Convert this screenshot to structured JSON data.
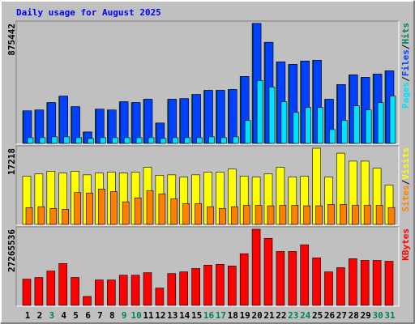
{
  "title": "Daily usage for August 2025",
  "legend_separator": "/",
  "chart_data": [
    {
      "type": "bar",
      "ylim": [
        0,
        875442
      ],
      "yticks": [
        875442
      ],
      "series": [
        {
          "name": "Hits",
          "color": "#00805c",
          "values": [
            238000,
            244000,
            298000,
            345000,
            268000,
            83000,
            250000,
            244000,
            304000,
            298000,
            322000,
            149000,
            322000,
            327000,
            357000,
            387000,
            387000,
            393000,
            488000,
            875442,
            738000,
            595000,
            577000,
            601000,
            607000,
            322000,
            429000,
            500000,
            482000,
            506000,
            530000
          ]
        },
        {
          "name": "Files",
          "color": "#0040ff",
          "values": [
            238000,
            244000,
            298000,
            345000,
            268000,
            83000,
            250000,
            244000,
            304000,
            298000,
            322000,
            149000,
            322000,
            327000,
            357000,
            387000,
            387000,
            393000,
            488000,
            875442,
            738000,
            595000,
            577000,
            601000,
            607000,
            322000,
            429000,
            500000,
            482000,
            506000,
            530000
          ]
        },
        {
          "name": "Pages",
          "color": "#00e0ff",
          "values": [
            42000,
            42000,
            48000,
            48000,
            42000,
            36000,
            42000,
            42000,
            42000,
            42000,
            42000,
            36000,
            42000,
            42000,
            42000,
            48000,
            42000,
            48000,
            167000,
            459000,
            411000,
            304000,
            226000,
            262000,
            262000,
            101000,
            167000,
            274000,
            244000,
            298000,
            345000
          ]
        }
      ]
    },
    {
      "type": "bar",
      "ylim": [
        0,
        17218
      ],
      "yticks": [
        17218
      ],
      "series": [
        {
          "name": "Visits",
          "color": "#ffff00",
          "values": [
            10900,
            11400,
            12000,
            11600,
            12000,
            11200,
            11600,
            11800,
            11600,
            11800,
            12900,
            11100,
            11200,
            10700,
            11200,
            11800,
            11800,
            12500,
            10900,
            10700,
            11400,
            12900,
            10700,
            10900,
            17218,
            10700,
            16100,
            14300,
            14300,
            12700,
            8900
          ]
        },
        {
          "name": "Sites",
          "color": "#ff8000",
          "values": [
            3800,
            4000,
            3600,
            3400,
            7200,
            7100,
            8000,
            7400,
            5100,
            6000,
            7600,
            6900,
            5800,
            4700,
            4700,
            4000,
            3600,
            4000,
            4300,
            4300,
            4200,
            4300,
            4300,
            4200,
            4200,
            4500,
            4500,
            4300,
            4300,
            4300,
            3800
          ]
        }
      ]
    },
    {
      "type": "bar",
      "ylim": [
        0,
        27265536
      ],
      "yticks": [
        27265536
      ],
      "categories": [
        "1",
        "2",
        "3",
        "4",
        "5",
        "6",
        "7",
        "8",
        "9",
        "10",
        "11",
        "12",
        "13",
        "14",
        "15",
        "16",
        "17",
        "18",
        "19",
        "20",
        "21",
        "22",
        "23",
        "24",
        "25",
        "26",
        "27",
        "28",
        "29",
        "30",
        "31"
      ],
      "category_colors": [
        "#000000",
        "#000000",
        "#00805c",
        "#000000",
        "#000000",
        "#000000",
        "#000000",
        "#000000",
        "#00805c",
        "#00805c",
        "#000000",
        "#000000",
        "#000000",
        "#000000",
        "#000000",
        "#00805c",
        "#00805c",
        "#000000",
        "#000000",
        "#000000",
        "#000000",
        "#000000",
        "#00805c",
        "#00805c",
        "#000000",
        "#000000",
        "#000000",
        "#000000",
        "#000000",
        "#00805c",
        "#00805c"
      ],
      "series": [
        {
          "name": "KBytes",
          "color": "#ff0000",
          "values": [
            9400000,
            10000000,
            12300000,
            15000000,
            10000000,
            3200000,
            9100000,
            9100000,
            10800000,
            10800000,
            11700000,
            6200000,
            11400000,
            12000000,
            13200000,
            14400000,
            14700000,
            14100000,
            18500000,
            27265536,
            24000000,
            19300000,
            19300000,
            21700000,
            17000000,
            12000000,
            13500000,
            16700000,
            16100000,
            16100000,
            15800000
          ]
        }
      ]
    }
  ]
}
